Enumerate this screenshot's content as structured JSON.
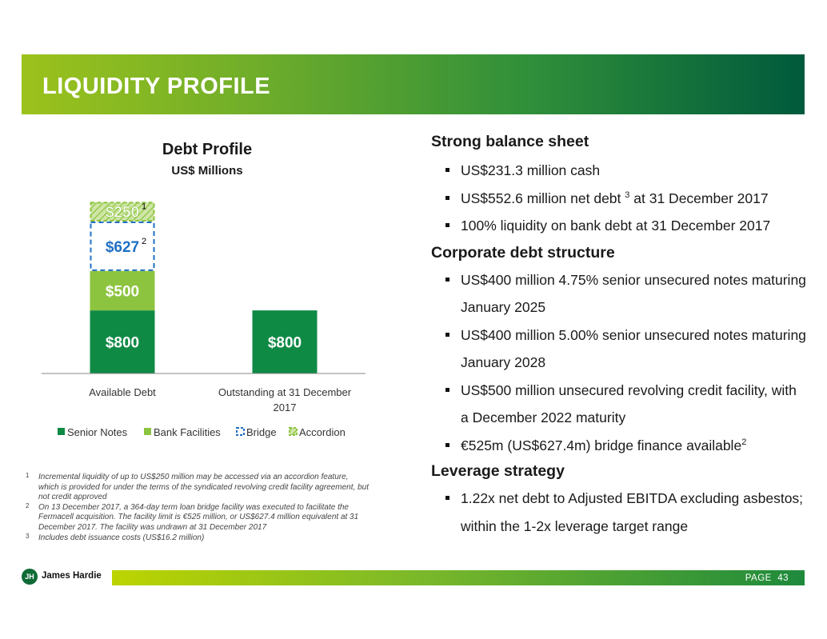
{
  "header": {
    "title": "LIQUIDITY PROFILE"
  },
  "chart_data": {
    "type": "bar",
    "stacked": true,
    "title": "Debt Profile",
    "subtitle": "US$ Millions",
    "categories": [
      "Available Debt",
      "Outstanding at 31 December 2017"
    ],
    "series": [
      {
        "name": "Senior Notes",
        "values": [
          800,
          800
        ],
        "labels": [
          "$800",
          "$800"
        ],
        "color": "#0f8a45",
        "style": "solid"
      },
      {
        "name": "Bank Facilities",
        "values": [
          500,
          0
        ],
        "labels": [
          "$500",
          ""
        ],
        "color": "#8cc43f",
        "style": "solid"
      },
      {
        "name": "Bridge",
        "values": [
          627,
          0
        ],
        "labels": [
          "$627",
          ""
        ],
        "color": "#1f6fc4",
        "style": "dashed",
        "superscript": "2"
      },
      {
        "name": "Accordion",
        "values": [
          250,
          0
        ],
        "labels": [
          "$250",
          ""
        ],
        "color": "#8cc43f",
        "style": "hatched",
        "superscript": "1"
      }
    ],
    "ylim": [
      0,
      2200
    ],
    "legend": "bottom",
    "grid": false
  },
  "footnotes": [
    {
      "num": "1",
      "text": "Incremental liquidity of up to US$250 million may be accessed via an accordion feature, which is provided for under the terms of the syndicated revolving credit facility agreement, but not credit approved"
    },
    {
      "num": "2",
      "text": "On 13 December 2017, a 364-day term loan bridge facility was executed to facilitate the Fermacell acquisition. The facility limit is €525 million, or US$627.4 million equivalent at 31 December 2017. The facility was undrawn at 31 December 2017"
    },
    {
      "num": "3",
      "text": "Includes debt issuance costs (US$16.2 million)"
    }
  ],
  "sections": [
    {
      "heading": "Strong balance sheet",
      "bullets": [
        {
          "text": "US$231.3 million cash"
        },
        {
          "pre": "US$552.6 million net debt ",
          "sup": "3",
          "post": " at 31 December 2017"
        },
        {
          "text": "100% liquidity on bank debt at 31 December 2017"
        }
      ]
    },
    {
      "heading": "Corporate debt structure",
      "bullets": [
        {
          "text": "US$400 million 4.75% senior unsecured notes maturing January 2025"
        },
        {
          "text": "US$400 million 5.00% senior unsecured notes maturing January 2028"
        },
        {
          "text": "US$500 million unsecured revolving credit facility, with a December 2022 maturity"
        },
        {
          "pre": "€525m (US$627.4m) bridge finance available",
          "sup": "2",
          "post": ""
        }
      ]
    },
    {
      "heading": "Leverage strategy",
      "bullets": [
        {
          "text": "1.22x net debt to Adjusted EBITDA excluding asbestos; within the 1-2x leverage target range"
        }
      ]
    }
  ],
  "footer": {
    "logo_text": "James Hardie",
    "logo_mark": "JH",
    "page_label": "PAGE",
    "page_number": "43"
  }
}
